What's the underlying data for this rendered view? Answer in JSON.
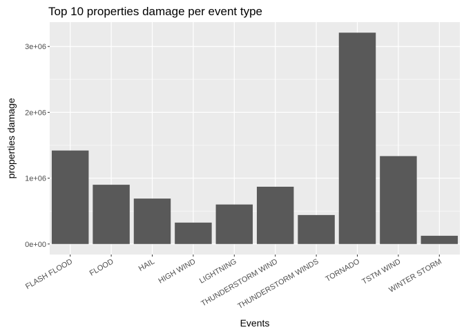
{
  "chart_data": {
    "type": "bar",
    "title": "Top 10 properties damage per event type",
    "xlabel": "Events",
    "ylabel": "properties damage",
    "categories": [
      "FLASH FLOOD",
      "FLOOD",
      "HAIL",
      "HIGH WIND",
      "LIGHTNING",
      "THUNDERSTORM WIND",
      "THUNDERSTORM WINDS",
      "TORNADO",
      "TSTM WIND",
      "WINTER STORM"
    ],
    "values": [
      1420000,
      900000,
      690000,
      325000,
      600000,
      870000,
      440000,
      3210000,
      1335000,
      125000
    ],
    "ylim": [
      -160000,
      3370000
    ],
    "yticks": [
      0,
      1000000,
      2000000,
      3000000
    ],
    "ytick_labels": [
      "0e+00",
      "1e+06",
      "2e+06",
      "3e+06"
    ],
    "grid": true,
    "colors": {
      "bar": "#595959",
      "panel": "#ebebeb",
      "grid": "#ffffff"
    }
  }
}
